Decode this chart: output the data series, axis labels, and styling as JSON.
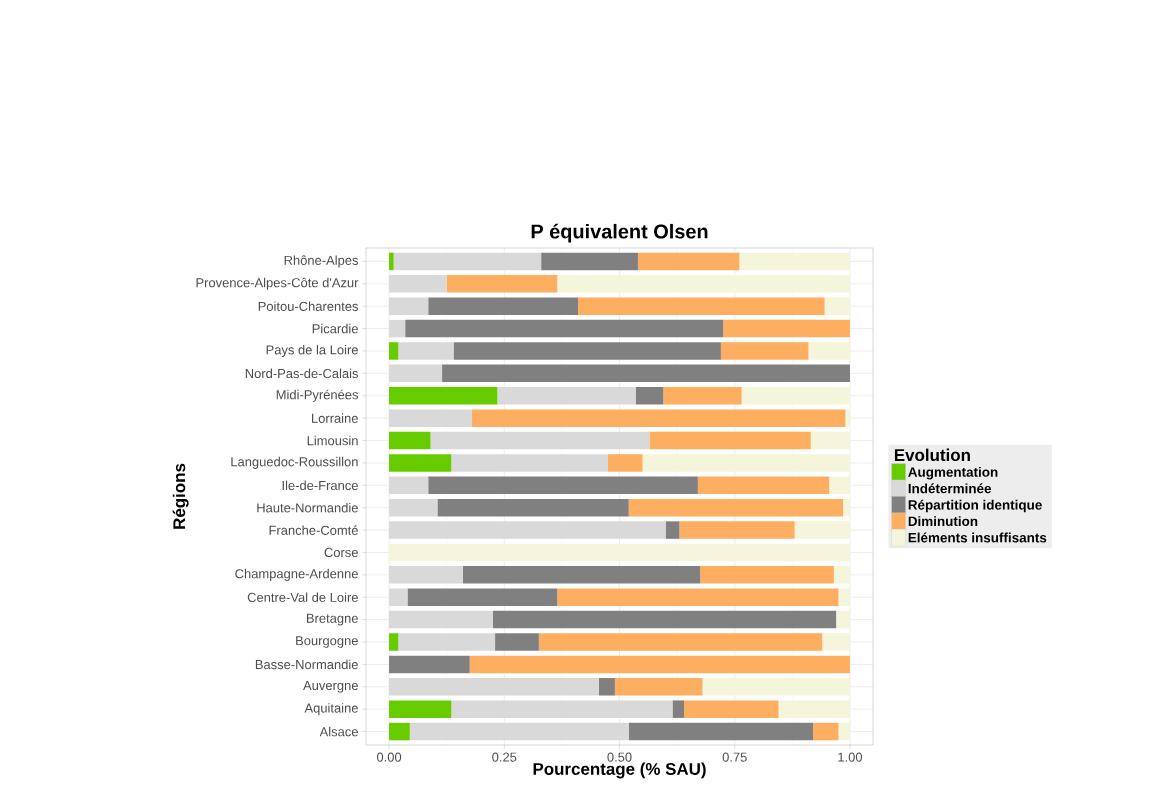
{
  "chart_data": {
    "type": "bar",
    "orientation": "horizontal",
    "stacked": true,
    "title": "P équivalent Olsen",
    "xlabel": "Pourcentage (% SAU)",
    "ylabel": "Régions",
    "legend_title": "Evolution",
    "categories": [
      "Rhône-Alpes",
      "Provence-Alpes-Côte d'Azur",
      "Poitou-Charentes",
      "Picardie",
      "Pays de la Loire",
      "Nord-Pas-de-Calais",
      "Midi-Pyrénées",
      "Lorraine",
      "Limousin",
      "Languedoc-Roussillon",
      "Ile-de-France",
      "Haute-Normandie",
      "Franche-Comté",
      "Corse",
      "Champagne-Ardenne",
      "Centre-Val de Loire",
      "Bretagne",
      "Bourgogne",
      "Basse-Normandie",
      "Auvergne",
      "Aquitaine",
      "Alsace"
    ],
    "series": [
      {
        "name": "Augmentation",
        "color": "#66cc00",
        "values": [
          0.01,
          0,
          0,
          0,
          0.02,
          0,
          0.235,
          0,
          0.09,
          0.135,
          0,
          0,
          0,
          0,
          0,
          0,
          0,
          0.02,
          0,
          0,
          0.135,
          0.045
        ]
      },
      {
        "name": "Indéterminée",
        "color": "#d9d9d9",
        "values": [
          0.32,
          0.125,
          0.085,
          0.035,
          0.12,
          0.115,
          0.3,
          0.18,
          0.475,
          0.34,
          0.085,
          0.105,
          0.6,
          0,
          0.16,
          0.04,
          0.225,
          0.21,
          0,
          0.455,
          0.48,
          0.475
        ]
      },
      {
        "name": "Répartition identique",
        "color": "#808080",
        "values": [
          0.21,
          0,
          0.325,
          0.69,
          0.58,
          0.885,
          0.06,
          0,
          0,
          0,
          0.585,
          0.415,
          0.03,
          0,
          0.515,
          0.325,
          0.745,
          0.095,
          0.175,
          0.035,
          0.025,
          0.4
        ]
      },
      {
        "name": "Diminution",
        "color": "#fdae61",
        "values": [
          0.22,
          0.24,
          0.535,
          0.275,
          0.19,
          0,
          0.17,
          0.81,
          0.35,
          0.075,
          0.285,
          0.465,
          0.25,
          0,
          0.29,
          0.61,
          0,
          0.615,
          0.825,
          0.19,
          0.205,
          0.055
        ]
      },
      {
        "name": "Eléments insuffisants",
        "color": "#f5f5dc",
        "values": [
          0.24,
          0.635,
          0.055,
          0,
          0.09,
          0,
          0.235,
          0.01,
          0.085,
          0.45,
          0.045,
          0.015,
          0.12,
          1,
          0.035,
          0.025,
          0.03,
          0.06,
          0,
          0.32,
          0.155,
          0.025
        ]
      }
    ],
    "xlim": [
      -0.05,
      1.05
    ],
    "xticks": [
      {
        "value": 0,
        "label": "0.00"
      },
      {
        "value": 0.25,
        "label": "0.25"
      },
      {
        "value": 0.5,
        "label": "0.50"
      },
      {
        "value": 0.75,
        "label": "0.75"
      },
      {
        "value": 1,
        "label": "1.00"
      }
    ],
    "grid": true,
    "legend": "right"
  }
}
